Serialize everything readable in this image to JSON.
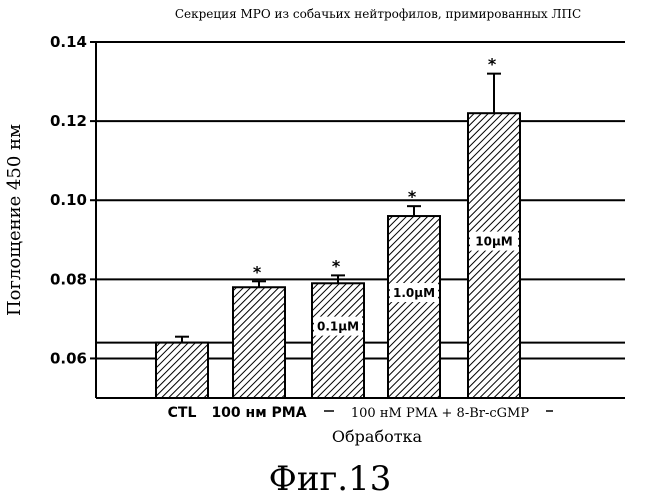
{
  "chart_data": {
    "type": "bar",
    "title": "Секреция МРО из собачьих нейтрофилов, примированных ЛПС",
    "ylabel": "Поглощение 450 нм",
    "xlabel": "Обработка",
    "ylim": [
      0.05,
      0.14
    ],
    "yticks": [
      "0.06",
      "0.08",
      "0.10",
      "0.12",
      "0.14"
    ],
    "grid_values": [
      0.06,
      0.064,
      0.08,
      0.1,
      0.12,
      0.14
    ],
    "bars": [
      {
        "value": 0.064,
        "error": 0.0015,
        "star": "",
        "inside_label": ""
      },
      {
        "value": 0.078,
        "error": 0.0015,
        "star": "*",
        "inside_label": ""
      },
      {
        "value": 0.079,
        "error": 0.002,
        "star": "*",
        "inside_label": "0.1µM"
      },
      {
        "value": 0.096,
        "error": 0.0025,
        "star": "*",
        "inside_label": "1.0µM"
      },
      {
        "value": 0.122,
        "error": 0.01,
        "star": "*",
        "inside_label": "10µM"
      }
    ],
    "category_labels": {
      "control": "CTL",
      "pma": "100 нм PMA",
      "group": "100 нМ PMA + 8-Br-cGMP"
    }
  },
  "figure_caption": "Фиг.13"
}
